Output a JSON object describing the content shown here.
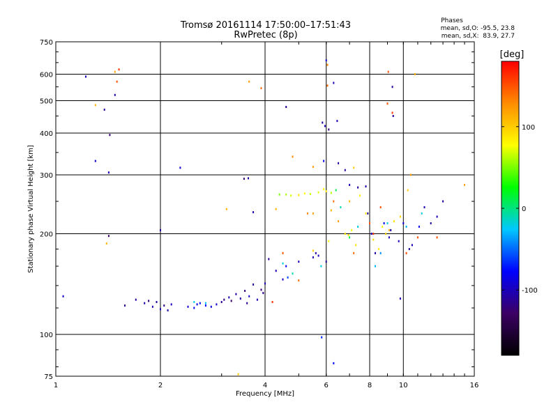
{
  "chart_data": {
    "type": "scatter",
    "title": "Tromsø 20161114 17:50:00–17:51:43",
    "subtitle": "RwPretec (8p)",
    "xlabel": "Frequency [MHz]",
    "ylabel": "Stationary phase Virtual Height [km]",
    "x_scale": "log",
    "y_scale": "log",
    "xlim": [
      1,
      16
    ],
    "ylim": [
      75,
      750
    ],
    "grid": true,
    "x_ticks": [
      1,
      2,
      4,
      6,
      8,
      10,
      16
    ],
    "x_tick_labels": [
      "1",
      "2",
      "4",
      "6",
      "8",
      "10",
      "16"
    ],
    "y_ticks": [
      75,
      100,
      200,
      300,
      400,
      500,
      600,
      750
    ],
    "y_tick_labels": [
      "75",
      "100",
      "200",
      "300",
      "400",
      "500",
      "600",
      "750"
    ],
    "legend_block": {
      "heading": "Phases",
      "line_o": "mean, sd,O: -95.5, 23.8",
      "line_x": "mean, sd,X:  83.9, 27.7"
    },
    "colorbar": {
      "title": "[deg]",
      "range": [
        -180,
        180
      ],
      "ticks": [
        100,
        0,
        -100
      ],
      "tick_labels": [
        "100",
        "0",
        "-100"
      ],
      "colors": [
        "#000000",
        "#3c0064",
        "#0000ff",
        "#00c8ff",
        "#00ff00",
        "#ffff00",
        "#ff8c00",
        "#ff0000"
      ]
    },
    "series": [
      {
        "points": [
          [
            1.05,
            130,
            -95
          ],
          [
            1.22,
            590,
            -100
          ],
          [
            1.3,
            330,
            -90
          ],
          [
            1.38,
            470,
            -110
          ],
          [
            1.42,
            305,
            -100
          ],
          [
            1.43,
            395,
            -120
          ],
          [
            1.48,
            520,
            -105
          ],
          [
            1.42,
            197,
            -130
          ],
          [
            1.58,
            122,
            -115
          ],
          [
            1.7,
            127,
            -110
          ],
          [
            1.8,
            124,
            -105
          ],
          [
            1.85,
            126,
            -120
          ],
          [
            1.9,
            121,
            -100
          ],
          [
            1.95,
            125,
            -110
          ],
          [
            2.0,
            119,
            -100
          ],
          [
            2.05,
            122,
            -115
          ],
          [
            2.1,
            118,
            -105
          ],
          [
            2.15,
            123,
            -100
          ],
          [
            2.0,
            205,
            -110
          ],
          [
            2.28,
            315,
            -90
          ],
          [
            2.4,
            121,
            -90
          ],
          [
            2.5,
            120,
            -80
          ],
          [
            2.55,
            123,
            -85
          ],
          [
            2.6,
            124,
            -75
          ],
          [
            2.7,
            122,
            -80
          ],
          [
            2.8,
            121,
            -85
          ],
          [
            2.9,
            123,
            -95
          ],
          [
            3.0,
            125,
            -110
          ],
          [
            3.05,
            127,
            -120
          ],
          [
            3.15,
            129,
            -100
          ],
          [
            3.2,
            126,
            -130
          ],
          [
            3.3,
            132,
            -110
          ],
          [
            3.4,
            128,
            -105
          ],
          [
            3.5,
            135,
            -120
          ],
          [
            3.55,
            124,
            -115
          ],
          [
            3.6,
            130,
            -95
          ],
          [
            3.7,
            141,
            -110
          ],
          [
            3.8,
            127,
            -100
          ],
          [
            3.9,
            136,
            -120
          ],
          [
            3.95,
            133,
            -115
          ],
          [
            3.48,
            292,
            -120
          ],
          [
            3.58,
            293,
            -110
          ],
          [
            3.7,
            232,
            -100
          ],
          [
            4.0,
            142,
            -105
          ],
          [
            4.1,
            168,
            -110
          ],
          [
            4.3,
            155,
            -100
          ],
          [
            4.5,
            146,
            -95
          ],
          [
            4.6,
            160,
            -80
          ],
          [
            4.65,
            148,
            -60
          ],
          [
            5.0,
            165,
            -100
          ],
          [
            4.6,
            479,
            -110
          ],
          [
            5.5,
            170,
            -100
          ],
          [
            5.6,
            175,
            -110
          ],
          [
            5.7,
            172,
            -95
          ],
          [
            6.0,
            165,
            -110
          ],
          [
            5.85,
            430,
            -110
          ],
          [
            5.95,
            420,
            -100
          ],
          [
            6.1,
            410,
            -120
          ],
          [
            6.0,
            660,
            -95
          ],
          [
            5.9,
            330,
            -80
          ],
          [
            5.82,
            98,
            -70
          ],
          [
            6.3,
            565,
            -100
          ],
          [
            6.5,
            325,
            -110
          ],
          [
            6.8,
            310,
            -110
          ],
          [
            7.0,
            280,
            -100
          ],
          [
            7.4,
            275,
            -110
          ],
          [
            7.8,
            277,
            -105
          ],
          [
            7.9,
            230,
            -110
          ],
          [
            8.1,
            200,
            -100
          ],
          [
            8.3,
            175,
            -105
          ],
          [
            8.8,
            215,
            -80
          ],
          [
            9.1,
            195,
            -100
          ],
          [
            9.2,
            205,
            -110
          ],
          [
            9.3,
            550,
            -110
          ],
          [
            9.35,
            450,
            -110
          ],
          [
            9.7,
            190,
            -100
          ],
          [
            10.0,
            215,
            -95
          ],
          [
            10.4,
            180,
            -110
          ],
          [
            10.6,
            185,
            -100
          ],
          [
            11.1,
            210,
            -80
          ],
          [
            11.5,
            240,
            -100
          ],
          [
            12.0,
            215,
            -110
          ],
          [
            12.5,
            225,
            -100
          ],
          [
            13.0,
            250,
            -110
          ],
          [
            6.3,
            82,
            -80
          ],
          [
            9.8,
            128,
            -100
          ],
          [
            6.45,
            435,
            -100
          ],
          [
            2.5,
            125,
            -20
          ],
          [
            2.7,
            124,
            -30
          ],
          [
            4.5,
            163,
            -20
          ],
          [
            4.8,
            152,
            -10
          ],
          [
            5.8,
            160,
            -20
          ],
          [
            6.6,
            240,
            -10
          ],
          [
            7.0,
            195,
            10
          ],
          [
            7.4,
            210,
            -20
          ],
          [
            8.3,
            160,
            -30
          ],
          [
            8.6,
            175,
            -40
          ],
          [
            9.0,
            215,
            -20
          ],
          [
            10.2,
            210,
            -30
          ],
          [
            11.3,
            230,
            -20
          ],
          [
            6.4,
            270,
            10
          ],
          [
            1.52,
            620,
            160
          ],
          [
            1.5,
            570,
            150
          ],
          [
            1.48,
            610,
            120
          ],
          [
            1.3,
            485,
            110
          ],
          [
            1.4,
            187,
            110
          ],
          [
            3.1,
            237,
            110
          ],
          [
            3.6,
            570,
            120
          ],
          [
            3.9,
            545,
            140
          ],
          [
            4.3,
            237,
            110
          ],
          [
            4.4,
            262,
            50
          ],
          [
            4.6,
            262,
            60
          ],
          [
            4.75,
            260,
            70
          ],
          [
            5.0,
            261,
            90
          ],
          [
            5.2,
            264,
            80
          ],
          [
            5.4,
            263,
            65
          ],
          [
            5.7,
            266,
            70
          ],
          [
            5.9,
            272,
            80
          ],
          [
            6.0,
            268,
            90
          ],
          [
            6.2,
            265,
            60
          ],
          [
            5.5,
            178,
            100
          ],
          [
            6.1,
            190,
            80
          ],
          [
            6.8,
            200,
            90
          ],
          [
            6.95,
            198,
            85
          ],
          [
            7.1,
            205,
            75
          ],
          [
            7.3,
            185,
            90
          ],
          [
            7.5,
            260,
            80
          ],
          [
            7.8,
            230,
            85
          ],
          [
            8.2,
            192,
            90
          ],
          [
            8.5,
            180,
            85
          ],
          [
            8.7,
            210,
            80
          ],
          [
            8.9,
            200,
            95
          ],
          [
            9.1,
            205,
            110
          ],
          [
            9.4,
            218,
            90
          ],
          [
            9.8,
            225,
            95
          ],
          [
            10.3,
            270,
            100
          ],
          [
            10.5,
            300,
            120
          ],
          [
            6.2,
            235,
            110
          ],
          [
            6.5,
            218,
            120
          ],
          [
            7.2,
            315,
            100
          ],
          [
            7.0,
            250,
            110
          ],
          [
            6.05,
            640,
            130
          ],
          [
            6.05,
            555,
            140
          ],
          [
            10.8,
            600,
            110
          ],
          [
            3.35,
            76,
            100
          ],
          [
            15.0,
            280,
            120
          ],
          [
            9.05,
            610,
            150
          ],
          [
            4.8,
            340,
            130
          ],
          [
            5.5,
            317,
            120
          ],
          [
            6.3,
            250,
            140
          ],
          [
            8.0,
            215,
            150
          ],
          [
            8.2,
            200,
            160
          ],
          [
            8.6,
            240,
            150
          ],
          [
            9.3,
            460,
            160
          ],
          [
            9.0,
            490,
            150
          ],
          [
            4.2,
            125,
            160
          ],
          [
            4.5,
            175,
            150
          ],
          [
            5.0,
            145,
            140
          ],
          [
            5.3,
            230,
            130
          ],
          [
            5.5,
            230,
            120
          ],
          [
            7.2,
            175,
            140
          ],
          [
            10.2,
            175,
            150
          ],
          [
            11.0,
            195,
            150
          ],
          [
            12.5,
            195,
            150
          ]
        ]
      }
    ]
  }
}
